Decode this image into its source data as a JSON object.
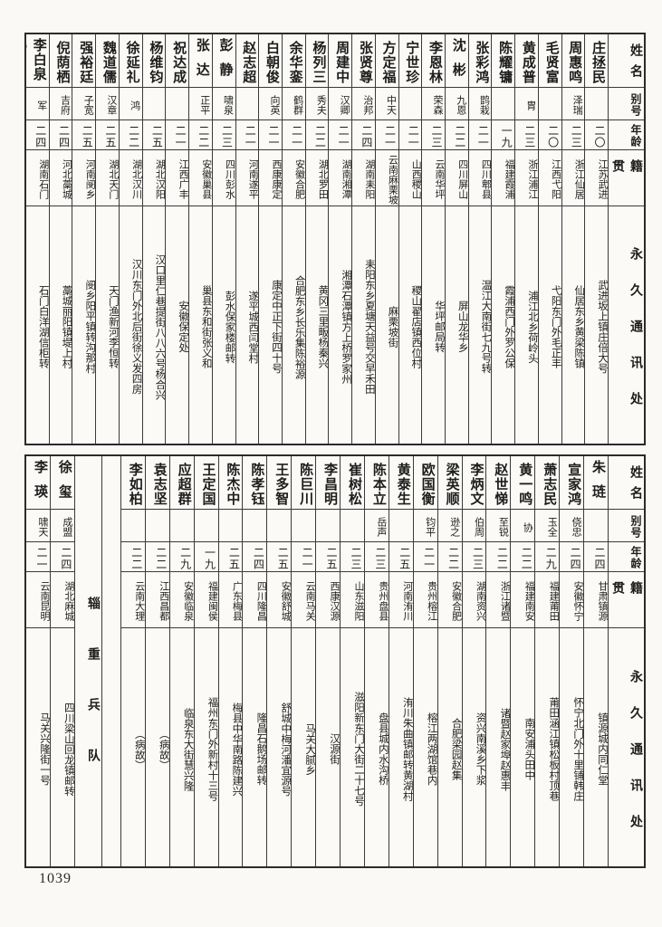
{
  "page_number": "1039",
  "header_labels": {
    "name": "姓名",
    "alias": "别号",
    "age": "年龄",
    "origin": "籍贯",
    "address": "永久通讯处"
  },
  "tables": [
    {
      "people": [
        {
          "name": "庄拯民",
          "alias": "",
          "age": "二〇",
          "origin": "江苏武进",
          "address": "武进坂上镇庄倍大号"
        },
        {
          "name": "周惠鸣",
          "alias": "泽瑞",
          "age": "二三",
          "origin": "浙江仙居",
          "address": "仙居东乡黄梁陈镇"
        },
        {
          "name": "毛贤富",
          "alias": "",
          "age": "二〇",
          "origin": "江西弋阳",
          "address": "弋阳东门外毛正丰"
        },
        {
          "name": "黄成普",
          "alias": "胄",
          "age": "二三",
          "origin": "浙江浦江",
          "address": "浦江北乡荷岭头"
        },
        {
          "name": "陈耀镛",
          "alias": "",
          "age": "一九",
          "origin": "福建霞浦",
          "address": "霞浦西门外罗公保"
        },
        {
          "name": "张彩鸿",
          "alias": "鹍栽",
          "age": "二一",
          "origin": "四川郫县",
          "address": "温江大南街七九号转"
        },
        {
          "name": "沈彬",
          "alias": "九恩",
          "age": "二二",
          "origin": "四川屏山",
          "address": "屏山龙华乡"
        },
        {
          "name": "李恩林",
          "alias": "荣森",
          "age": "二三",
          "origin": "云南华坪",
          "address": "华坪邮局转"
        },
        {
          "name": "宁世珍",
          "alias": "",
          "age": "二一",
          "origin": "山西稷山",
          "address": "稷山翟店镇西位村"
        },
        {
          "name": "方定福",
          "alias": "中天",
          "age": "二一",
          "origin": "云南麻栗坡",
          "address": "麻栗坡街"
        },
        {
          "name": "张贤尊",
          "alias": "治邦",
          "age": "二四",
          "origin": "湖南耒阳",
          "address": "耒阳东乡夏塘天益号交早禾田"
        },
        {
          "name": "周建中",
          "alias": "汉卿",
          "age": "二一",
          "origin": "湖南湘潭",
          "address": "湘潭石潭镇方上桥罗家州"
        },
        {
          "name": "杨列三",
          "alias": "秀夫",
          "age": "二二",
          "origin": "湖北罗田",
          "address": "黄冈三里畈杨秦兴"
        },
        {
          "name": "余华銮",
          "alias": "鹤群",
          "age": "二一",
          "origin": "安徽合肥",
          "address": "合肥东乡长乐集陈裕源"
        },
        {
          "name": "白朝俊",
          "alias": "向英",
          "age": "二一",
          "origin": "西康康定",
          "address": "康定中正下街四十号"
        },
        {
          "name": "赵志超",
          "alias": "",
          "age": "二一",
          "origin": "河南遂平",
          "address": "遂平城西闫堂村"
        },
        {
          "name": "彭静",
          "alias": "啸泉",
          "age": "二三",
          "origin": "四川彭水",
          "address": "彭水保家楼邮转"
        },
        {
          "name": "张达",
          "alias": "正平",
          "age": "二二",
          "origin": "安徽巢县",
          "address": "巢县东和街张义和"
        },
        {
          "name": "祝达成",
          "alias": "",
          "age": "二一",
          "origin": "江西广丰",
          "address": "安徽保定处"
        },
        {
          "name": "杨维钧",
          "alias": "",
          "age": "二五",
          "origin": "湖北汉阳",
          "address": "汉口里仁巷提街八八六号杨合兴"
        },
        {
          "name": "徐延礼",
          "alias": "鸿",
          "age": "二二",
          "origin": "湖北汉川",
          "address": "汉川东门外北后街徐义发四房"
        },
        {
          "name": "魏道儒",
          "alias": "汉章",
          "age": "二五",
          "origin": "湖北天门",
          "address": "天门渔新河李恒转"
        },
        {
          "name": "强裕廷",
          "alias": "子宽",
          "age": "二五",
          "origin": "河南阌乡",
          "address": "阌乡阳平镇转沟那村"
        },
        {
          "name": "倪荫栖",
          "alias": "吉府",
          "age": "二四",
          "origin": "河北藁城",
          "address": "藁城丽阳镇堤上村"
        },
        {
          "name": "李白泉⊛",
          "alias": "军",
          "age": "二四",
          "origin": "湖南石门",
          "address": "石门白洋湖信柜转"
        }
      ]
    },
    {
      "people": [
        {
          "name": "朱琏",
          "alias": "",
          "age": "二四",
          "origin": "甘肃镇源",
          "address": "镇源城内同仁堂"
        },
        {
          "name": "宣家鸿",
          "alias": "侥忠",
          "age": "二四",
          "origin": "安徽怀宁",
          "address": "怀宁北门外十里铺韩庄"
        },
        {
          "name": "萧志民",
          "alias": "玉全",
          "age": "二九",
          "origin": "福建莆田",
          "address": "莆田涵江镇松板村顶巷"
        },
        {
          "name": "黄一鸣",
          "alias": "协",
          "age": "二二",
          "origin": "福建南安",
          "address": "南安浦头田中"
        },
        {
          "name": "赵世悌",
          "alias": "至锐",
          "age": "二二",
          "origin": "浙江诸暨",
          "address": "诸暨赵家埠赵惠丰"
        },
        {
          "name": "李炳文",
          "alias": "伯周",
          "age": "二三",
          "origin": "湖南资兴",
          "address": "资兴南溪乡下浆"
        },
        {
          "name": "梁英顺",
          "alias": "逊之",
          "age": "二二",
          "origin": "安徽合肥",
          "address": "合肥梁园赵集"
        },
        {
          "name": "欧国衡",
          "alias": "钧平",
          "age": "二一",
          "origin": "贵州榕江",
          "address": "榕江两湖馆巷内"
        },
        {
          "name": "黄泰生",
          "alias": "",
          "age": "二五",
          "origin": "河南洧川",
          "address": "洧川朱曲镇邮转黄湖村"
        },
        {
          "name": "陈本立",
          "alias": "岳声",
          "age": "二三",
          "origin": "贵州盘县",
          "address": "盘县城内水沟桥"
        },
        {
          "name": "崔树松",
          "alias": "",
          "age": "二三",
          "origin": "山东滋阳",
          "address": "滋阳新东门大街二十七号"
        },
        {
          "name": "李昌明",
          "alias": "",
          "age": "二五",
          "origin": "西康汉源",
          "address": "汉源街"
        },
        {
          "name": "陈巨川",
          "alias": "",
          "age": "二一",
          "origin": "云南马关",
          "address": "马关大腻乡"
        },
        {
          "name": "王多智",
          "alias": "",
          "age": "二五",
          "origin": "安徽舒城",
          "address": "舒城中梅河潘宜源号"
        },
        {
          "name": "陈孝钰",
          "alias": "",
          "age": "二四",
          "origin": "四川隆昌",
          "address": "隆昌石鹅场邮转"
        },
        {
          "name": "陈杰中",
          "alias": "",
          "age": "二五",
          "origin": "广东梅县",
          "address": "梅县中华南路陈建兴"
        },
        {
          "name": "王定国",
          "alias": "",
          "age": "一九",
          "origin": "福建闽侯",
          "address": "福州东门外新村十三号"
        },
        {
          "name": "应超群",
          "alias": "",
          "age": "二九",
          "origin": "安徽临泉",
          "address": "临泉东大街慧兴隆"
        },
        {
          "name": "袁志坚",
          "alias": "",
          "age": "二二",
          "origin": "江西昌都",
          "address": "（病故）"
        },
        {
          "name": "李如柏",
          "alias": "",
          "age": "二二",
          "origin": "云南大理",
          "address": "（病故）"
        },
        {
          "type": "spacer"
        },
        {
          "type": "divider",
          "label": "辎重兵队"
        },
        {
          "name": "徐玺",
          "alias": "成盟",
          "age": "二四",
          "origin": "湖北麻城",
          "address": "四川梁山回龙镇邮转"
        },
        {
          "name": "李瑛",
          "alias": "啸天",
          "age": "二一",
          "origin": "云南昆明",
          "address": "马关兴隆街一号"
        }
      ]
    }
  ]
}
